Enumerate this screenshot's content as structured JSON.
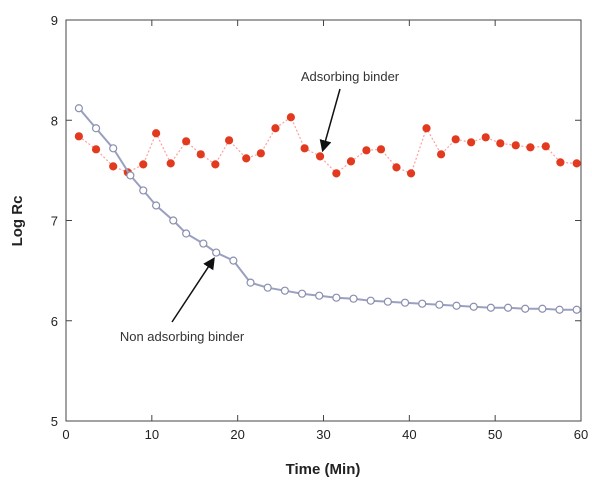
{
  "chart_data": {
    "type": "scatter",
    "title": "",
    "xlabel": "Time (Min)",
    "ylabel": "Log Rc",
    "xlim": [
      0,
      60
    ],
    "ylim": [
      5,
      9
    ],
    "xticks": [
      "0",
      "10",
      "20",
      "30",
      "40",
      "50",
      "60"
    ],
    "yticks": [
      "5",
      "6",
      "7",
      "8",
      "9"
    ],
    "grid": false,
    "series": [
      {
        "name": "Adsorbing binder",
        "color": "#e23a1e",
        "line_color": "#ff9f9f",
        "marker": "filled-circle",
        "x": [
          1.5,
          3.5,
          5.5,
          7.2,
          9.0,
          10.5,
          12.2,
          14.0,
          15.7,
          17.4,
          19.0,
          21.0,
          22.7,
          24.4,
          26.2,
          27.8,
          29.6,
          31.5,
          33.2,
          35.0,
          36.7,
          38.5,
          40.2,
          42.0,
          43.7,
          45.4,
          47.2,
          48.9,
          50.6,
          52.4,
          54.1,
          55.9,
          57.6,
          59.5
        ],
        "y": [
          7.84,
          7.71,
          7.54,
          7.48,
          7.56,
          7.87,
          7.57,
          7.79,
          7.66,
          7.56,
          7.8,
          7.62,
          7.67,
          7.92,
          8.03,
          7.72,
          7.64,
          7.47,
          7.59,
          7.7,
          7.71,
          7.53,
          7.47,
          7.92,
          7.66,
          7.81,
          7.78,
          7.83,
          7.77,
          7.75,
          7.73,
          7.74,
          7.58,
          7.57
        ]
      },
      {
        "name": "Non adsorbing binder",
        "color": "#8a8fb0",
        "line_color": "#9aa0c0",
        "marker": "open-circle",
        "x": [
          1.5,
          3.5,
          5.5,
          7.5,
          9.0,
          10.5,
          12.5,
          14.0,
          16.0,
          17.5,
          19.5,
          21.5,
          23.5,
          25.5,
          27.5,
          29.5,
          31.5,
          33.5,
          35.5,
          37.5,
          39.5,
          41.5,
          43.5,
          45.5,
          47.5,
          49.5,
          51.5,
          53.5,
          55.5,
          57.5,
          59.5
        ],
        "y": [
          8.12,
          7.92,
          7.72,
          7.45,
          7.3,
          7.15,
          7.0,
          6.87,
          6.77,
          6.68,
          6.6,
          6.38,
          6.33,
          6.3,
          6.27,
          6.25,
          6.23,
          6.22,
          6.2,
          6.19,
          6.18,
          6.17,
          6.16,
          6.15,
          6.14,
          6.13,
          6.13,
          6.12,
          6.12,
          6.11,
          6.11
        ]
      }
    ],
    "annotations": [
      {
        "text": "Adsorbing binder",
        "series": "Adsorbing binder"
      },
      {
        "text": "Non adsorbing binder",
        "series": "Non adsorbing binder"
      }
    ]
  }
}
